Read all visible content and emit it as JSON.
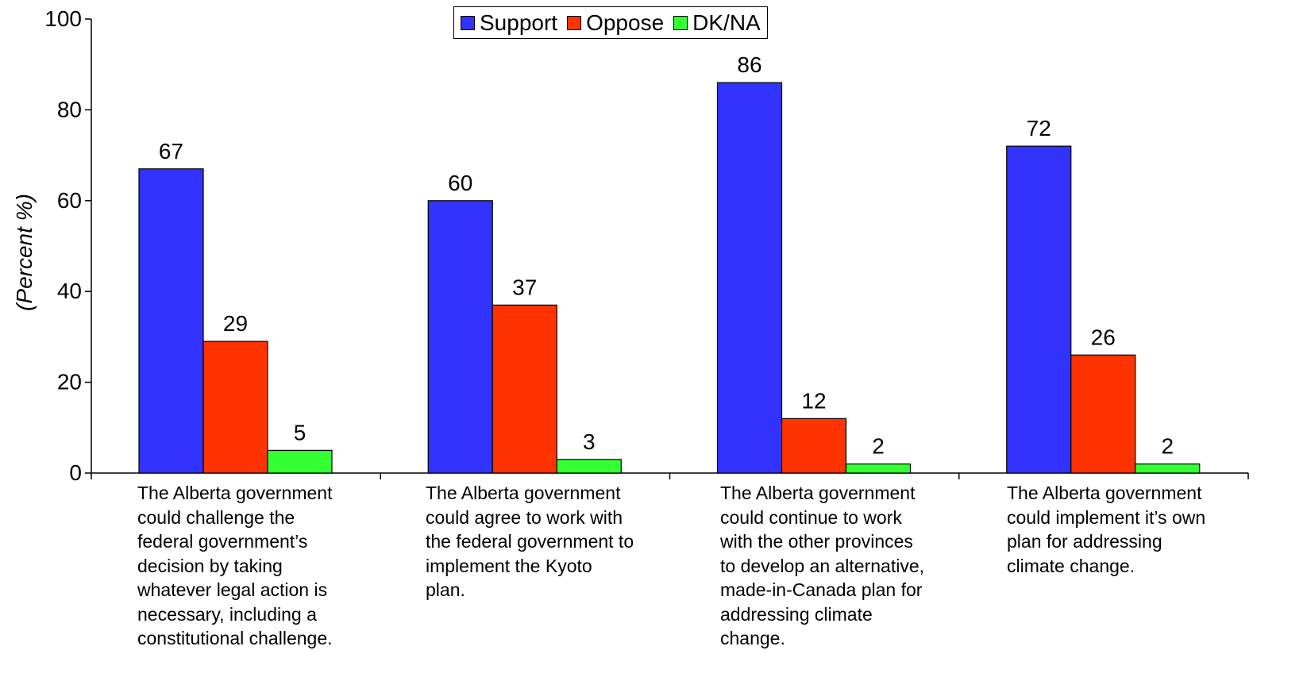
{
  "chart_data": {
    "type": "bar",
    "title": "",
    "xlabel": "",
    "ylabel": "(Percent %)",
    "ylim": [
      0,
      100
    ],
    "yticks": [
      0,
      20,
      40,
      60,
      80,
      100
    ],
    "grid": false,
    "legend_position": "top-center",
    "categories": [
      "The Alberta government\ncould challenge the\nfederal government’s\ndecision by taking\nwhatever legal action is\nnecessary, including a\nconstitutional challenge.",
      "The Alberta government\ncould agree to work with\nthe federal government to\nimplement the Kyoto\nplan.",
      "The Alberta government\ncould continue to work\nwith the other provinces\nto develop an alternative,\nmade-in-Canada plan for\naddressing climate\nchange.",
      "The Alberta government\ncould implement it’s own\nplan for addressing\nclimate change."
    ],
    "series": [
      {
        "name": "Support",
        "color": "#3333ff",
        "values": [
          67,
          60,
          86,
          72
        ]
      },
      {
        "name": "Oppose",
        "color": "#ff3300",
        "values": [
          29,
          37,
          12,
          26
        ]
      },
      {
        "name": "DK/NA",
        "color": "#33ff33",
        "values": [
          5,
          3,
          2,
          2
        ]
      }
    ]
  }
}
